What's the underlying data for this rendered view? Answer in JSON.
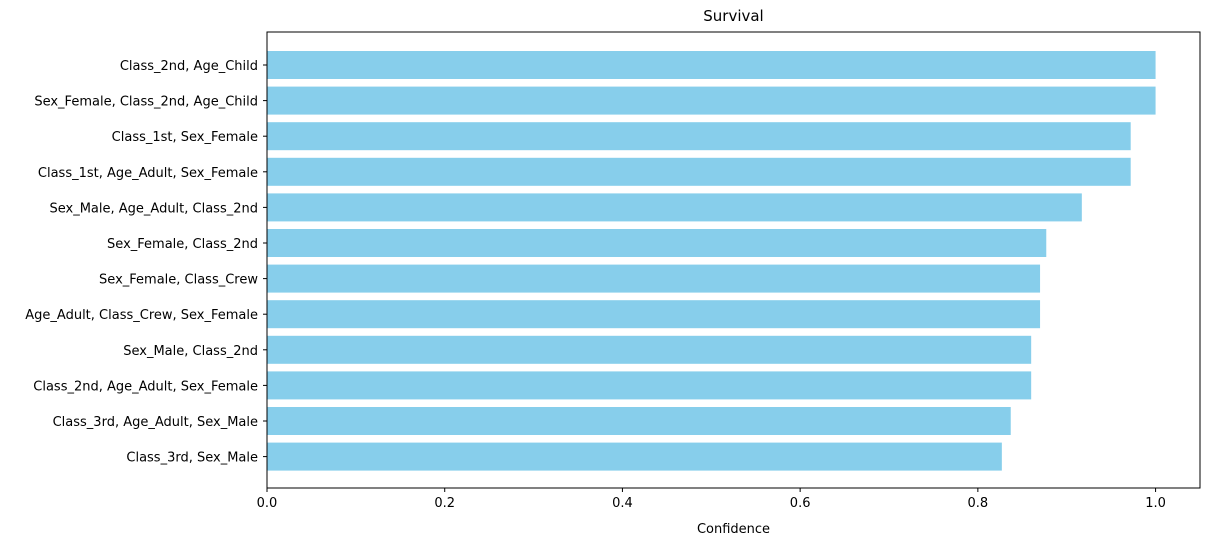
{
  "chart_data": {
    "type": "bar",
    "orientation": "horizontal",
    "title": "Survival",
    "xlabel": "Confidence",
    "ylabel": "",
    "xlim": [
      0,
      1.05
    ],
    "xticks": [
      0.0,
      0.2,
      0.4,
      0.6,
      0.8,
      1.0
    ],
    "xtick_labels": [
      "0.0",
      "0.2",
      "0.4",
      "0.6",
      "0.8",
      "1.0"
    ],
    "grid": false,
    "bar_color": "#87CEEB",
    "categories": [
      "Class_2nd, Age_Child",
      "Sex_Female, Class_2nd, Age_Child",
      "Class_1st, Sex_Female",
      "Class_1st, Age_Adult, Sex_Female",
      "Sex_Male, Age_Adult, Class_2nd",
      "Sex_Female, Class_2nd",
      "Sex_Female, Class_Crew",
      "Age_Adult, Class_Crew, Sex_Female",
      "Sex_Male, Class_2nd",
      "Class_2nd, Age_Adult, Sex_Female",
      "Class_3rd, Age_Adult, Sex_Male",
      "Class_3rd, Sex_Male"
    ],
    "values": [
      1.0,
      1.0,
      0.972,
      0.972,
      0.917,
      0.877,
      0.87,
      0.87,
      0.86,
      0.86,
      0.837,
      0.827
    ]
  }
}
